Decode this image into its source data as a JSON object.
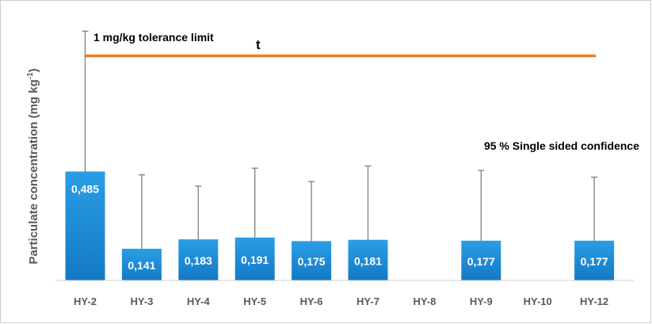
{
  "chart_data": {
    "type": "bar",
    "ylabel_main": "Particulate concentration (mg kg",
    "ylabel_sup": "-1",
    "ylabel_close": ")",
    "categories": [
      "HY-2",
      "HY-3",
      "HY-4",
      "HY-5",
      "HY-6",
      "HY-7",
      "HY-8",
      "HY-9",
      "HY-10",
      "HY-12"
    ],
    "values": [
      0.485,
      0.141,
      0.183,
      0.191,
      0.175,
      0.181,
      null,
      0.177,
      null,
      0.177
    ],
    "value_labels": [
      "0,485",
      "0,141",
      "0,183",
      "0,191",
      "0,175",
      "0,181",
      "",
      "0,177",
      "",
      "0,177"
    ],
    "error_upper": [
      1.11,
      0.47,
      0.42,
      0.5,
      0.44,
      0.51,
      null,
      0.49,
      null,
      0.46
    ],
    "ylim": [
      0,
      1.15
    ],
    "tolerance_limit": {
      "value": 1.0,
      "label": "1 mg/kg tolerance limit",
      "marker": "t",
      "color": "#ef7d1f"
    },
    "annotation": "95 % Single sided confidence",
    "bar_color": "#1b8fd8",
    "grid": false
  }
}
